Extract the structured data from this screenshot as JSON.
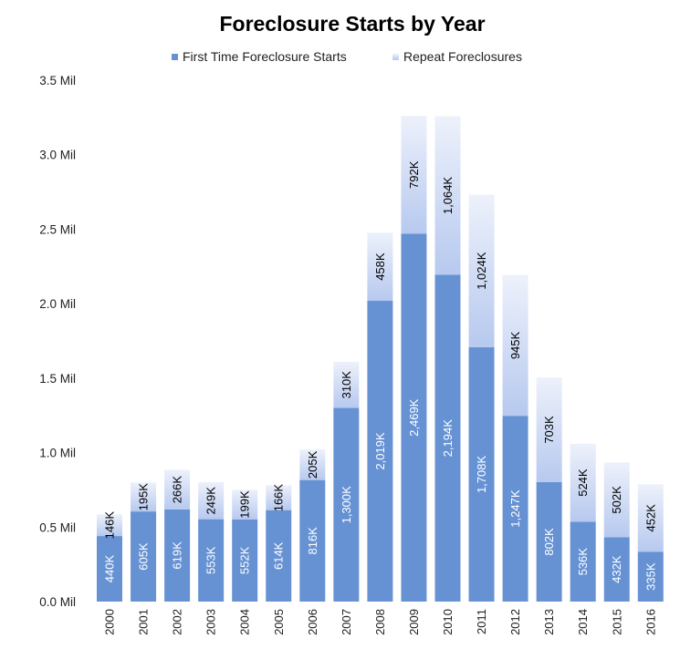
{
  "chart_data": {
    "type": "bar",
    "stacked": true,
    "title": "Foreclosure Starts by Year",
    "categories": [
      "2000",
      "2001",
      "2002",
      "2003",
      "2004",
      "2005",
      "2006",
      "2007",
      "2008",
      "2009",
      "2010",
      "2011",
      "2012",
      "2013",
      "2014",
      "2015",
      "2016"
    ],
    "series": [
      {
        "name": "First Time Foreclosure Starts",
        "color": "#6692d4",
        "label_color": "#ffffff",
        "values": [
          440000,
          605000,
          619000,
          553000,
          552000,
          614000,
          816000,
          1300000,
          2019000,
          2469000,
          2194000,
          1708000,
          1247000,
          802000,
          536000,
          432000,
          335000
        ],
        "labels": [
          "440K",
          "605K",
          "619K",
          "553K",
          "552K",
          "614K",
          "816K",
          "1,300K",
          "2,019K",
          "2,469K",
          "2,194K",
          "1,708K",
          "1,247K",
          "802K",
          "536K",
          "432K",
          "335K"
        ]
      },
      {
        "name": "Repeat Foreclosures",
        "color_top": "#edf1fb",
        "color_bottom": "#b7c9ef",
        "label_color": "#000000",
        "values": [
          146000,
          195000,
          266000,
          249000,
          199000,
          166000,
          205000,
          310000,
          458000,
          792000,
          1064000,
          1024000,
          945000,
          703000,
          524000,
          502000,
          452000
        ],
        "labels": [
          "146K",
          "195K",
          "266K",
          "249K",
          "199K",
          "166K",
          "205K",
          "310K",
          "458K",
          "792K",
          "1,064K",
          "1,024K",
          "945K",
          "703K",
          "524K",
          "502K",
          "452K"
        ]
      }
    ],
    "yticks": [
      0,
      500000,
      1000000,
      1500000,
      2000000,
      2500000,
      3000000,
      3500000
    ],
    "ytick_labels": [
      "0.0 Mil",
      "0.5 Mil",
      "1.0 Mil",
      "1.5 Mil",
      "2.0 Mil",
      "2.5 Mil",
      "3.0 Mil",
      "3.5 Mil"
    ],
    "ylim": [
      0,
      3500000
    ],
    "grid": false,
    "legend_position": "top-center",
    "xlabel": "",
    "ylabel": ""
  }
}
